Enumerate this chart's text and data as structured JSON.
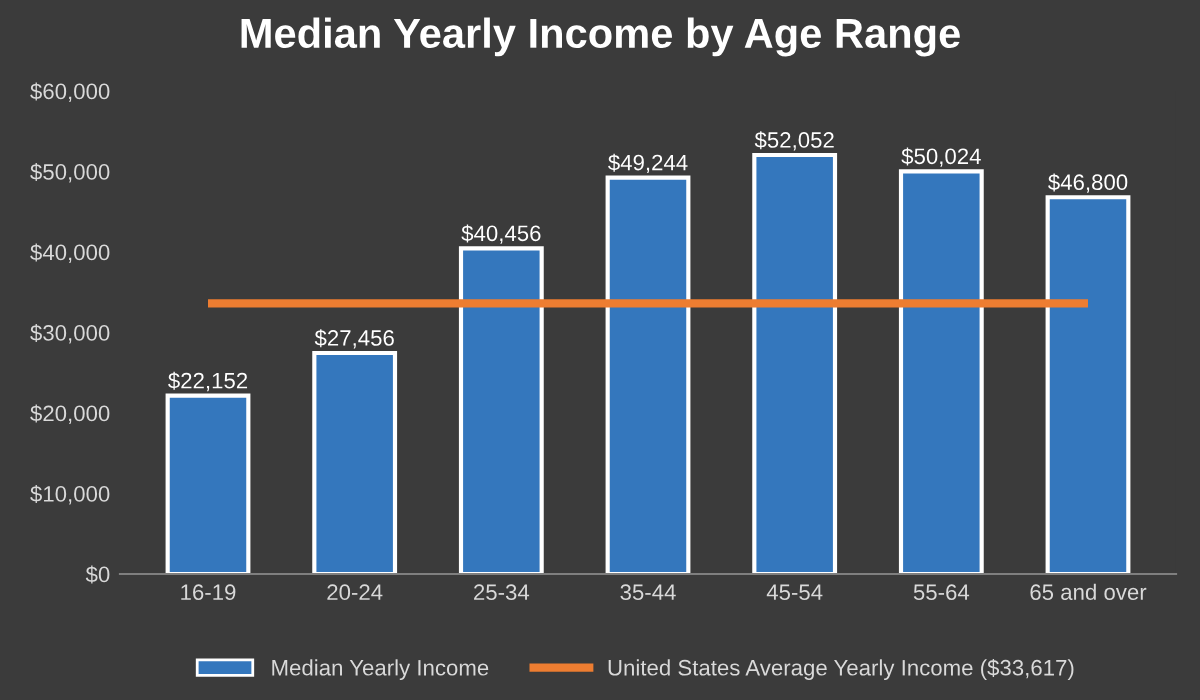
{
  "chart_data": {
    "type": "bar",
    "title": "Median Yearly Income by Age Range",
    "categories": [
      "16-19",
      "20-24",
      "25-34",
      "35-44",
      "45-54",
      "55-64",
      "65 and over"
    ],
    "series": [
      {
        "name": "Median Yearly Income",
        "color": "#3477bd",
        "values": [
          22152,
          27456,
          40456,
          49244,
          52052,
          50024,
          46800
        ],
        "value_labels": [
          "$22,152",
          "$27,456",
          "$40,456",
          "$49,244",
          "$52,052",
          "$50,024",
          "$46,800"
        ]
      },
      {
        "name": "United States Average Yearly Income ($33,617)",
        "type": "line",
        "color": "#ed7d31",
        "values": [
          33617,
          33617,
          33617,
          33617,
          33617,
          33617,
          33617
        ]
      }
    ],
    "ylim": [
      0,
      60000
    ],
    "yticks": [
      {
        "value": 0,
        "label": "$0"
      },
      {
        "value": 10000,
        "label": "$10,000"
      },
      {
        "value": 20000,
        "label": "$20,000"
      },
      {
        "value": 30000,
        "label": "$30,000"
      },
      {
        "value": 40000,
        "label": "$40,000"
      },
      {
        "value": 50000,
        "label": "$50,000"
      },
      {
        "value": 60000,
        "label": "$60,000"
      }
    ],
    "grid": false,
    "legend": "bottom",
    "marker": "none",
    "line_style": "solid"
  }
}
